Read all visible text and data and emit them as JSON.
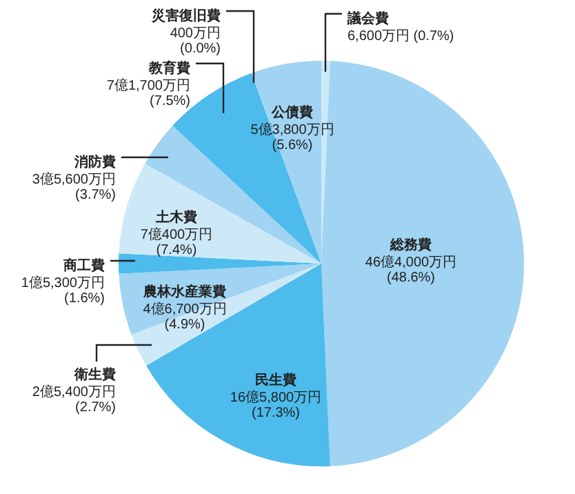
{
  "chart_data": {
    "type": "pie",
    "categories": [
      "議会費",
      "総務費",
      "民生費",
      "衛生費",
      "農林水産業費",
      "商工費",
      "土木費",
      "消防費",
      "教育費",
      "災害復旧費",
      "公債費"
    ],
    "values": [
      0.7,
      48.6,
      17.3,
      2.7,
      4.9,
      1.6,
      7.4,
      3.7,
      7.5,
      0.0,
      5.6
    ],
    "value_labels": [
      "6,600万円 (0.7%)",
      "46億4,000万円\n(48.6%)",
      "16億5,800万円\n(17.3%)",
      "2億5,400万円\n(2.7%)",
      "4億6,700万円\n(4.9%)",
      "1億5,300万円\n(1.6%)",
      "7億400万円\n(7.4%)",
      "3億5,600万円\n(3.7%)",
      "7億1,700万円\n(7.5%)",
      "400万円\n(0.0%)",
      "5億3,800万円\n(5.6%)"
    ],
    "colors": [
      "#cde9f8",
      "#a0d4f2",
      "#4dbbec",
      "#cde9f8",
      "#a0d4f2",
      "#4dbbec",
      "#cde9f8",
      "#a0d4f2",
      "#4dbbec",
      "#cde9f8",
      "#a0d4f2"
    ],
    "legend": false
  }
}
